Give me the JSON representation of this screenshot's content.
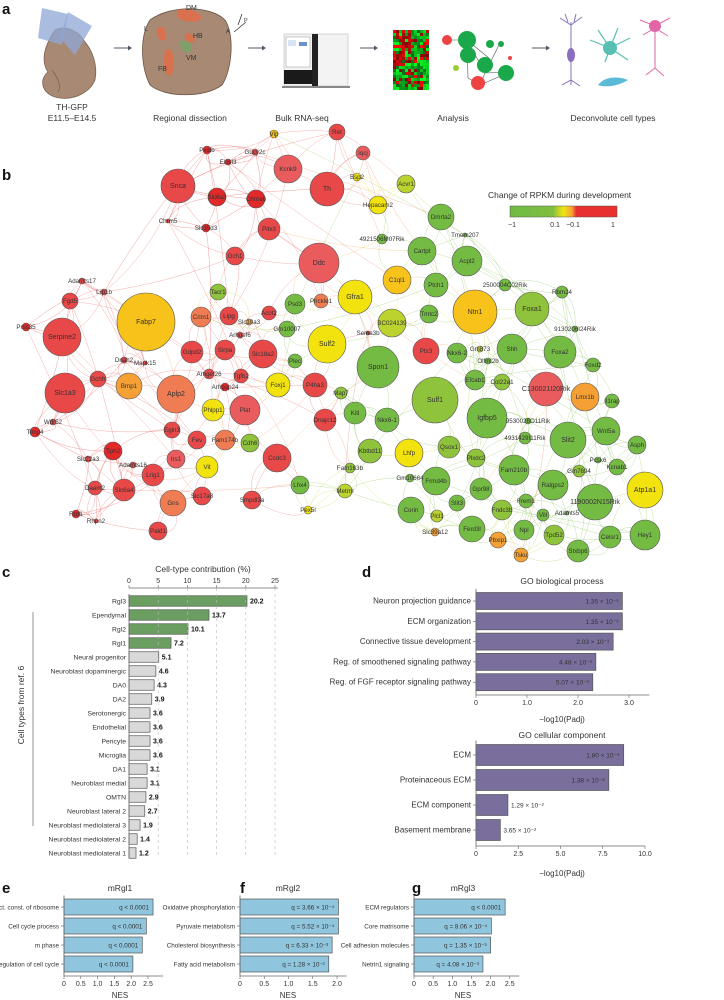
{
  "panel_labels": {
    "a": "a",
    "b": "b",
    "c": "c",
    "d": "d",
    "e": "e",
    "f": "f",
    "g": "g"
  },
  "panel_a": {
    "steps": [
      {
        "caption": "TH-GFP",
        "caption2": "E11.5–E14.5"
      },
      {
        "caption": "Regional dissection"
      },
      {
        "caption": "Bulk RNA-seq"
      },
      {
        "caption": "Analysis"
      },
      {
        "caption": "Deconvolute cell types"
      }
    ],
    "brain_regions": {
      "dm": "DM",
      "l": "L",
      "hb": "HB",
      "vm": "VM",
      "fb": "FB",
      "a": "A",
      "p": "P"
    },
    "icons": [
      "embryo-icon",
      "brain-icon",
      "sequencer-icon",
      "heatmap-icon",
      "network-icon",
      "neurons-icon"
    ]
  },
  "network": {
    "legend": {
      "title": "Change of RPKM during development",
      "ticks": [
        "−1",
        "0.1",
        "−0.1",
        "1"
      ],
      "colors": {
        "low": "#6fba44",
        "mid": "#f2e60f",
        "high": "#e8302f"
      }
    },
    "nodes": [
      {
        "label": "Vip",
        "change": 0.05
      },
      {
        "label": "Ret",
        "change": 0.8
      },
      {
        "label": "Iqcj",
        "change": 0.6
      },
      {
        "label": "Pvalb",
        "change": 1
      },
      {
        "label": "Gucy2c",
        "change": 0.8
      },
      {
        "label": "Elovl3",
        "change": 1
      },
      {
        "label": "Kcnk9",
        "change": 0.4
      },
      {
        "label": "Snca",
        "change": 0.8
      },
      {
        "label": "Slc6a3",
        "change": 1
      },
      {
        "label": "Chrna6",
        "change": 1
      },
      {
        "label": "Th",
        "change": 0.8
      },
      {
        "label": "Bsp2",
        "change": 0
      },
      {
        "label": "Chrm5",
        "change": 0.8
      },
      {
        "label": "Slc35d3",
        "change": 1
      },
      {
        "label": "Pitx3",
        "change": 0.7
      },
      {
        "label": "Gch1",
        "change": 0.7
      },
      {
        "label": "Ddc",
        "change": 0.6
      },
      {
        "label": "Adamts17",
        "change": 0.8
      },
      {
        "label": "Lrp1b",
        "change": 0.8
      },
      {
        "label": "Fgd5",
        "change": 0.8
      },
      {
        "label": "Fabp7",
        "change": 0.05
      },
      {
        "label": "Prss35",
        "change": 1
      },
      {
        "label": "Serpine2",
        "change": 0.8
      },
      {
        "label": "Tacr1",
        "change": -0.2
      },
      {
        "label": "Crim1",
        "change": 0.3
      },
      {
        "label": "Lipg",
        "change": 0.7
      },
      {
        "label": "Acot2",
        "change": 0.7
      },
      {
        "label": "Slc10a3",
        "change": 0.1
      },
      {
        "label": "Gm10007",
        "change": -0.4
      },
      {
        "label": "Psd3",
        "change": -0.4
      },
      {
        "label": "Prickle1",
        "change": 0.2
      },
      {
        "label": "Arhgef6",
        "change": 0.8
      },
      {
        "label": "Gfra1",
        "change": 0
      },
      {
        "label": "Sulf2",
        "change": 0
      },
      {
        "label": "Gdpd2",
        "change": 0.8
      },
      {
        "label": "Sirpa",
        "change": 0.7
      },
      {
        "label": "Slc18a2",
        "change": 0.8
      },
      {
        "label": "Plec",
        "change": -0.3
      },
      {
        "label": "Dnah2",
        "change": 0.8
      },
      {
        "label": "Mapk15",
        "change": 0.8
      },
      {
        "label": "Slc1a3",
        "change": 0.8
      },
      {
        "label": "Gchfr",
        "change": 0.8
      },
      {
        "label": "Bmp1",
        "change": 0.1
      },
      {
        "label": "Aplp2",
        "change": 0.2
      },
      {
        "label": "Arhgef26",
        "change": 0.8
      },
      {
        "label": "Tgfb2",
        "change": 0.8
      },
      {
        "label": "Arhgap24",
        "change": 0.9
      },
      {
        "label": "Foxj1",
        "change": 0
      },
      {
        "label": "P4ha3",
        "change": 0.8
      },
      {
        "label": "Map7",
        "change": -0.2
      },
      {
        "label": "Phlpp1",
        "change": 0
      },
      {
        "label": "Plat",
        "change": 0.6
      },
      {
        "label": "Dnajc12",
        "change": 0.7
      },
      {
        "label": "Timp4",
        "change": 1
      },
      {
        "label": "Wdr52",
        "change": 0.8
      },
      {
        "label": "Tph2",
        "change": 1
      },
      {
        "label": "Egln3",
        "change": 0.8
      },
      {
        "label": "Fev",
        "change": 0.8
      },
      {
        "label": "Fam174b",
        "change": 0.2
      },
      {
        "label": "Cdh6",
        "change": -0.2
      },
      {
        "label": "Ccdc3",
        "change": 0.7
      },
      {
        "label": "Irs1",
        "change": 0.5
      },
      {
        "label": "Vit",
        "change": 0
      },
      {
        "label": "Lrig1",
        "change": 0.7
      },
      {
        "label": "Slc22a3",
        "change": 0.8
      },
      {
        "label": "Adamts16",
        "change": 0.8
      },
      {
        "label": "Daam2",
        "change": 0.7
      },
      {
        "label": "Slc6a4",
        "change": 0.8
      },
      {
        "label": "Gns",
        "change": 0.3
      },
      {
        "label": "Slc17a8",
        "change": 0.8
      },
      {
        "label": "Smpdl3a",
        "change": 0.8
      },
      {
        "label": "Pald1",
        "change": 0.8
      },
      {
        "label": "Fzd1",
        "change": 1
      },
      {
        "label": "Rhpn2",
        "change": 0.8
      },
      {
        "label": "Lhx4",
        "change": -0.3
      },
      {
        "label": "Metrnl",
        "change": -0.1
      },
      {
        "label": "Pex5l",
        "change": 0
      },
      {
        "label": "Acvr1",
        "change": -0.05
      },
      {
        "label": "Hepacam2",
        "change": 0
      },
      {
        "label": "Dmrta2",
        "change": -0.5
      },
      {
        "label": "Tmem207",
        "change": -0.5
      },
      {
        "label": "4921506M07Rik",
        "change": -0.5
      },
      {
        "label": "Cartpt",
        "change": -0.5
      },
      {
        "label": "Acpl2",
        "change": -0.5
      },
      {
        "label": "C1ql1",
        "change": 0.03
      },
      {
        "label": "Ptch1",
        "change": -0.5
      },
      {
        "label": "2500004C02Rik",
        "change": -0.5
      },
      {
        "label": "Rbm24",
        "change": -0.5
      },
      {
        "label": "Tmtc2",
        "change": -0.5
      },
      {
        "label": "Ntn1",
        "change": 0.02
      },
      {
        "label": "Foxa1",
        "change": -0.2
      },
      {
        "label": "BC024139",
        "change": -0.1
      },
      {
        "label": "9130206I24Rik",
        "change": -0.5
      },
      {
        "label": "Sema3b",
        "change": 0.9
      },
      {
        "label": "Shh",
        "change": -0.5
      },
      {
        "label": "Foxa2",
        "change": -0.4
      },
      {
        "label": "Ptx3",
        "change": 0.7
      },
      {
        "label": "Nkx6-2",
        "change": -0.5
      },
      {
        "label": "Gm873",
        "change": -0.1
      },
      {
        "label": "Olfml2b",
        "change": -0.3
      },
      {
        "label": "Spon1",
        "change": -0.4
      },
      {
        "label": "Foxd2",
        "change": -0.5
      },
      {
        "label": "Efcab1",
        "change": -0.4
      },
      {
        "label": "Col22a1",
        "change": -0.15
      },
      {
        "label": "C130021I20Rik",
        "change": 0.6
      },
      {
        "label": "Lmx1b",
        "change": 0.1
      },
      {
        "label": "Il1rap",
        "change": -0.5
      },
      {
        "label": "Sulf1",
        "change": -0.2
      },
      {
        "label": "Igfbp5",
        "change": -0.5
      },
      {
        "label": "Kitl",
        "change": -0.4
      },
      {
        "label": "Nkx6-1",
        "change": -0.5
      },
      {
        "label": "9530026O11Rik",
        "change": -0.5
      },
      {
        "label": "4931429I11Rik",
        "change": -0.5
      },
      {
        "label": "Slit2",
        "change": -0.5
      },
      {
        "label": "Wnt5a",
        "change": -0.5
      },
      {
        "label": "Asph",
        "change": -0.5
      },
      {
        "label": "Qsox1",
        "change": -0.2
      },
      {
        "label": "Lhfp",
        "change": 0
      },
      {
        "label": "Kbtbd11",
        "change": -0.2
      },
      {
        "label": "Plxdc2",
        "change": -0.15
      },
      {
        "label": "Fam210b",
        "change": -0.3
      },
      {
        "label": "Pcsk6",
        "change": -0.5
      },
      {
        "label": "Gm7694",
        "change": -0.2
      },
      {
        "label": "Kcnab1",
        "change": -0.5
      },
      {
        "label": "Atp1a1",
        "change": 0
      },
      {
        "label": "Ralgps2",
        "change": -0.5
      },
      {
        "label": "Gm10664",
        "change": -0.5
      },
      {
        "label": "Frmd4b",
        "change": -0.5
      },
      {
        "label": "Gpr98",
        "change": -0.4
      },
      {
        "label": "Frem1",
        "change": -0.5
      },
      {
        "label": "1190002N15Rik",
        "change": -0.5
      },
      {
        "label": "Slit3",
        "change": -0.5
      },
      {
        "label": "Fndc3b",
        "change": -0.2
      },
      {
        "label": "Vill",
        "change": -0.4
      },
      {
        "label": "Adamts5",
        "change": -0.5
      },
      {
        "label": "Corin",
        "change": -0.5
      },
      {
        "label": "Plcl1",
        "change": -0.1
      },
      {
        "label": "Ferd3l",
        "change": -0.5
      },
      {
        "label": "Npl",
        "change": -0.5
      },
      {
        "label": "Tpd52",
        "change": -0.2
      },
      {
        "label": "Celsr1",
        "change": -0.5
      },
      {
        "label": "Hey1",
        "change": -0.5
      },
      {
        "label": "Pbxip1",
        "change": 0.1
      },
      {
        "label": "Slc39a12",
        "change": 0.1
      },
      {
        "label": "Tsku",
        "change": 0.1
      },
      {
        "label": "Stxbp6",
        "change": -0.5
      },
      {
        "label": "Fam163b",
        "change": -0.2
      }
    ]
  },
  "chart_data": [
    {
      "id": "c",
      "type": "bar",
      "orientation": "horizontal",
      "title": "Cell-type contribution (%)",
      "xlabel": "Cell-type contribution (%)",
      "ylabel": "Cell types from ref. 6",
      "xlim": [
        0,
        25
      ],
      "ticks": [
        0,
        5,
        10,
        15,
        20,
        25
      ],
      "grid": "dashed-vertical",
      "categories": [
        "Rgl3",
        "Ependymal",
        "Rgl2",
        "Rgl1",
        "Neural progenitor",
        "Neuroblast dopaminergic",
        "DA0",
        "DA2",
        "Serotonergic",
        "Endothelial",
        "Pericyte",
        "Microglia",
        "DA1",
        "Neuroblast medial",
        "OMTN",
        "Neuroblast lateral 2",
        "Neuroblast mediolateral 3",
        "Neuroblast mediolateral 2",
        "Neuroblast mediolateral 1"
      ],
      "values": [
        20.2,
        13.7,
        10.1,
        7.2,
        5.1,
        4.6,
        4.3,
        3.9,
        3.6,
        3.6,
        3.6,
        3.6,
        3.1,
        3.1,
        2.9,
        2.7,
        1.9,
        1.4,
        1.2
      ],
      "value_labels": [
        "20.2",
        "13.7",
        "10.1",
        "7.2",
        "5.1",
        "4.6",
        "4.3",
        "3.9",
        "3.6",
        "3.6",
        "3.6",
        "3.6",
        "3.1",
        "3.1",
        "2.9",
        "2.7",
        "1.9",
        "1.4",
        "1.2"
      ],
      "highlighted_count": 4,
      "colors": {
        "highlight": "#6b9f62",
        "other": "#d9d9d9"
      }
    },
    {
      "id": "d1",
      "type": "bar",
      "orientation": "horizontal",
      "title": "GO biological process",
      "xlabel": "−log10(Padj)",
      "xlim": [
        0,
        3.4
      ],
      "ticks": [
        0,
        1,
        2,
        3
      ],
      "tick_labels": [
        "0",
        "1.0",
        "2.0",
        "3.0"
      ],
      "categories": [
        "Neuron projection guidance",
        "ECM organization",
        "Connective tissue development",
        "Reg. of smoothened signaling pathway",
        "Reg. of FGF receptor signaling pathway"
      ],
      "values": [
        2.87,
        2.87,
        2.69,
        2.35,
        2.29
      ],
      "value_labels": [
        "1.35 × 10⁻³",
        "1.35 × 10⁻³",
        "2.03 × 10⁻³",
        "4.48 × 10⁻³",
        "5.07 × 10⁻³"
      ],
      "colors": {
        "bar": "#7a6f9c"
      }
    },
    {
      "id": "d2",
      "type": "bar",
      "orientation": "horizontal",
      "title": "GO cellular component",
      "xlabel": "−log10(Padj)",
      "xlim": [
        0,
        10
      ],
      "ticks": [
        0,
        2.5,
        5,
        7.5,
        10
      ],
      "tick_labels": [
        "0",
        "2.5",
        "5.0",
        "7.5",
        "10.0"
      ],
      "categories": [
        "ECM",
        "Proteinaceous ECM",
        "ECM component",
        "Basement membrane"
      ],
      "values": [
        8.74,
        7.86,
        1.89,
        1.44
      ],
      "value_labels": [
        "1.80 × 10⁻⁹",
        "1.38 × 10⁻⁸",
        "1.29 × 10⁻²",
        "3.65 × 10⁻²"
      ],
      "colors": {
        "bar": "#7a6f9c"
      }
    },
    {
      "id": "e",
      "type": "bar",
      "orientation": "horizontal",
      "title": "mRgl1",
      "xlabel": "NES",
      "xlim": [
        0,
        2.9
      ],
      "ticks": [
        0,
        0.5,
        1,
        1.5,
        2,
        2.5
      ],
      "tick_labels": [
        "0",
        "0.5",
        "1.0",
        "1.5",
        "2.0",
        "2.5"
      ],
      "categories": [
        "Struct. const. of ribosome",
        "Cell cycle process",
        "m phase",
        "Regulation of cell cycle"
      ],
      "values": [
        2.65,
        2.45,
        2.33,
        2.05
      ],
      "value_labels": [
        "q < 0.0001",
        "q < 0.0001",
        "q < 0.0001",
        "q < 0.0001"
      ],
      "colors": {
        "bar": "#8fc6dd"
      }
    },
    {
      "id": "f",
      "type": "bar",
      "orientation": "horizontal",
      "title": "mRgl2",
      "xlabel": "NES",
      "xlim": [
        0,
        2.15
      ],
      "ticks": [
        0,
        0.5,
        1,
        1.5,
        2
      ],
      "tick_labels": [
        "0",
        "0.5",
        "1.0",
        "1.5",
        "2.0"
      ],
      "categories": [
        "Oxidative phosphorylation",
        "Pyruvate metabolism",
        "Cholesterol biosynthesis",
        "Fatty acid metabolism"
      ],
      "values": [
        2.03,
        2.03,
        1.9,
        1.83
      ],
      "value_labels": [
        "q = 3.66 × 10⁻⁴",
        "q = 5.52 × 10⁻⁴",
        "q = 6.33 × 10⁻³",
        "q = 1.28 × 10⁻²"
      ],
      "colors": {
        "bar": "#8fc6dd"
      }
    },
    {
      "id": "g",
      "type": "bar",
      "orientation": "horizontal",
      "title": "mRgl3",
      "xlabel": "NES",
      "xlim": [
        0,
        2.7
      ],
      "ticks": [
        0,
        0.5,
        1,
        1.5,
        2,
        2.5
      ],
      "tick_labels": [
        "0",
        "0.5",
        "1.0",
        "1.5",
        "2.0",
        "2.5"
      ],
      "categories": [
        "ECM regulators",
        "Core matrisome",
        "Cell adhesion molecules",
        "Netrin1 signaling"
      ],
      "values": [
        2.38,
        2.02,
        2.0,
        1.8
      ],
      "value_labels": [
        "q < 0.0001",
        "q = 8.06 × 10⁻⁴",
        "q = 1.35 × 10⁻³",
        "q = 4.08 × 10⁻³"
      ],
      "colors": {
        "bar": "#8fc6dd"
      }
    }
  ]
}
